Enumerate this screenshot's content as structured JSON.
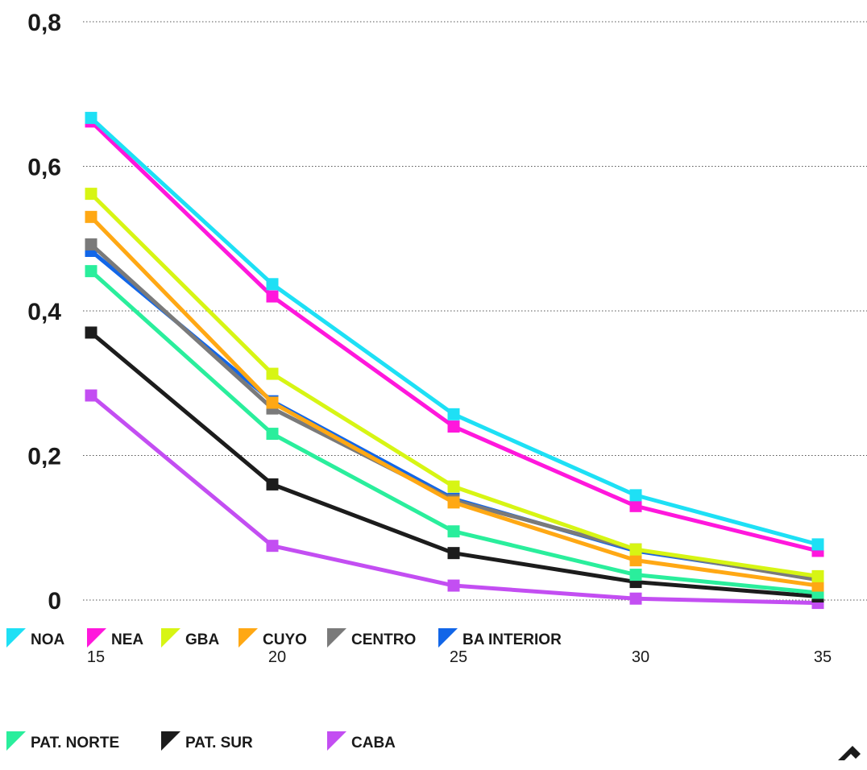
{
  "chart_data": {
    "type": "line",
    "title": "",
    "xlabel": "",
    "ylabel": "",
    "x": [
      15,
      20,
      25,
      30,
      35
    ],
    "x_tick_labels": [
      "15",
      "20",
      "25",
      "30",
      "35"
    ],
    "y_tick_labels": [
      "0",
      "0,2",
      "0,4",
      "0,6",
      "0,8"
    ],
    "y_ticks": [
      0,
      0.2,
      0.4,
      0.6,
      0.8
    ],
    "ylim": [
      0,
      0.8
    ],
    "grid": "horizontal dotted",
    "legend_position": "bottom",
    "series": [
      {
        "name": "NOA",
        "color": "#1ee0f5",
        "values": [
          0.667,
          0.437,
          0.257,
          0.145,
          0.077
        ]
      },
      {
        "name": "NEA",
        "color": "#ff17dc",
        "values": [
          0.662,
          0.42,
          0.24,
          0.13,
          0.068
        ]
      },
      {
        "name": "GBA",
        "color": "#d7f514",
        "values": [
          0.562,
          0.313,
          0.157,
          0.07,
          0.033
        ]
      },
      {
        "name": "CUYO",
        "color": "#ffa814",
        "values": [
          0.53,
          0.273,
          0.135,
          0.055,
          0.02
        ]
      },
      {
        "name": "CENTRO",
        "color": "#7a7a7a",
        "values": [
          0.492,
          0.265,
          0.138,
          0.07,
          0.028
        ]
      },
      {
        "name": "BA INTERIOR",
        "color": "#1266e8",
        "values": [
          0.483,
          0.275,
          0.14,
          0.068,
          0.03
        ]
      },
      {
        "name": "PAT. NORTE",
        "color": "#2aee9c",
        "values": [
          0.455,
          0.23,
          0.095,
          0.035,
          0.01
        ]
      },
      {
        "name": "PAT. SUR",
        "color": "#1c1c1c",
        "values": [
          0.37,
          0.16,
          0.065,
          0.025,
          0.005
        ]
      },
      {
        "name": "CABA",
        "color": "#c34ef2",
        "values": [
          0.283,
          0.075,
          0.02,
          0.002,
          -0.004
        ]
      }
    ]
  }
}
